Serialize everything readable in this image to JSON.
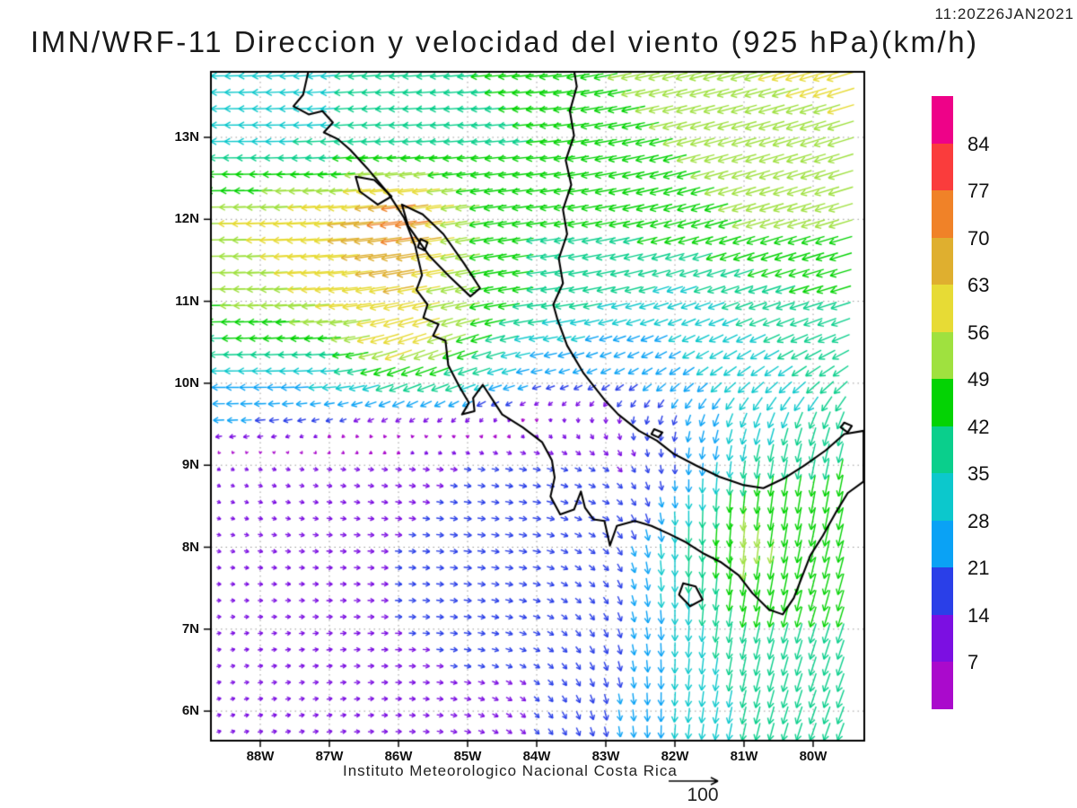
{
  "header": {
    "title": "IMN/WRF-11 Direccion y velocidad del viento (925 hPa)(km/h)",
    "timestamp": "11:20Z26JAN2021"
  },
  "footer": {
    "institute": "Instituto Meteorologico Nacional Costa Rica",
    "reference_label": "100"
  },
  "axes": {
    "lat_labels": [
      "13N",
      "12N",
      "11N",
      "10N",
      "9N",
      "8N",
      "7N",
      "6N"
    ],
    "lon_labels": [
      "88W",
      "87W",
      "86W",
      "85W",
      "84W",
      "83W",
      "82W",
      "81W",
      "80W"
    ]
  },
  "chart_data": {
    "type": "quiver",
    "title": "IMN/WRF-11 Direccion y velocidad del viento (925 hPa)(km/h)",
    "valid_time": "11:20Z26JAN2021",
    "units": "km/h",
    "level": "925 hPa",
    "lon_range": [
      -88.7,
      -79.3
    ],
    "lat_range": [
      5.6,
      13.8
    ],
    "grid_on": true,
    "legend_position": "right",
    "reference_speed": 100,
    "speed_levels": [
      7,
      14,
      21,
      28,
      35,
      42,
      49,
      56,
      63,
      70,
      77,
      84
    ],
    "speed_colors": [
      "#aa0acc",
      "#7c0fe2",
      "#2a3fe8",
      "#0aa2f5",
      "#0cc8cc",
      "#0acf8c",
      "#04d304",
      "#9fe13f",
      "#e7db35",
      "#dfaf2f",
      "#f08228",
      "#fa3c3c",
      "#ee0288"
    ],
    "grid": {
      "lons": [
        -89,
        -88,
        -87,
        -86,
        -85,
        -84,
        -83,
        -82,
        -81,
        -80,
        -79
      ],
      "lats": [
        5.5,
        6,
        7,
        8,
        8.5,
        9,
        9.5,
        10,
        10.5,
        11,
        12,
        13,
        14
      ],
      "u": [
        [
          8,
          10,
          11,
          12,
          13,
          10,
          5,
          -2,
          -8,
          -12,
          -14
        ],
        [
          8,
          10,
          11,
          12,
          13,
          10,
          5,
          -2,
          -8,
          -12,
          -14
        ],
        [
          8,
          10,
          12,
          14,
          15,
          14,
          8,
          0,
          -8,
          -12,
          -14
        ],
        [
          8,
          10,
          12,
          14,
          16,
          16,
          12,
          0,
          -5,
          -10,
          -12
        ],
        [
          7,
          9,
          11,
          13,
          15,
          16,
          14,
          2,
          -5,
          -8,
          -10
        ],
        [
          5,
          8,
          10,
          12,
          14,
          15,
          12,
          0,
          -5,
          -8,
          -10
        ],
        [
          -22,
          -20,
          -12,
          -8,
          -5,
          3,
          2,
          -5,
          -10,
          -12,
          -12
        ],
        [
          -28,
          -28,
          -30,
          -40,
          -35,
          -20,
          -18,
          -20,
          -25,
          -28,
          -30
        ],
        [
          -40,
          -42,
          -45,
          -60,
          -45,
          -30,
          -25,
          -25,
          -30,
          -35,
          -35
        ],
        [
          -48,
          -52,
          -58,
          -60,
          -50,
          -40,
          -35,
          -30,
          -35,
          -40,
          -40
        ],
        [
          -55,
          -58,
          -62,
          -75,
          -50,
          -42,
          -42,
          -45,
          -48,
          -48,
          -48
        ],
        [
          -30,
          -32,
          -35,
          -38,
          -40,
          -42,
          -45,
          -48,
          -50,
          -52,
          -52
        ],
        [
          -30,
          -31,
          -34,
          -38,
          -42,
          -45,
          -48,
          -52,
          -55,
          -56,
          -58
        ]
      ],
      "v": [
        [
          3,
          2,
          2,
          0,
          -3,
          -10,
          -20,
          -28,
          -35,
          -35,
          -35
        ],
        [
          3,
          2,
          2,
          0,
          -3,
          -10,
          -20,
          -28,
          -35,
          -35,
          -35
        ],
        [
          2,
          1,
          1,
          0,
          -2,
          -5,
          -15,
          -30,
          -40,
          -40,
          -40
        ],
        [
          -2,
          -2,
          -1,
          -1,
          -2,
          -3,
          -10,
          -35,
          -52,
          -45,
          -45
        ],
        [
          -3,
          -3,
          -2,
          -2,
          -2,
          -3,
          -6,
          -25,
          -48,
          -45,
          -45
        ],
        [
          -4,
          -3,
          -2,
          -2,
          -2,
          -3,
          -8,
          -18,
          -35,
          -40,
          -42
        ],
        [
          0,
          -2,
          -5,
          -6,
          -8,
          -6,
          -12,
          -20,
          -30,
          -35,
          -38
        ],
        [
          0,
          0,
          -2,
          -15,
          -12,
          -5,
          -10,
          -15,
          -20,
          -22,
          -25
        ],
        [
          0,
          -2,
          -3,
          -20,
          -15,
          -5,
          -8,
          -12,
          -15,
          -15,
          -15
        ],
        [
          0,
          -2,
          -5,
          -12,
          -10,
          -5,
          -8,
          -10,
          -12,
          -12,
          -12
        ],
        [
          0,
          -2,
          -5,
          -10,
          -8,
          -6,
          -8,
          -12,
          -14,
          -14,
          -15
        ],
        [
          0,
          0,
          -2,
          -2,
          -3,
          -4,
          -8,
          -12,
          -14,
          -16,
          -16
        ],
        [
          0,
          -2,
          -3,
          -3,
          -4,
          -5,
          -10,
          -12,
          -14,
          -16,
          -18
        ]
      ]
    }
  },
  "map": {
    "coastline": [
      [
        -87.3,
        13.82
      ],
      [
        -87.38,
        13.52
      ],
      [
        -87.52,
        13.38
      ],
      [
        -87.3,
        13.28
      ],
      [
        -87.1,
        13.32
      ],
      [
        -86.95,
        13.18
      ],
      [
        -87.08,
        13.06
      ],
      [
        -86.88,
        12.98
      ],
      [
        -86.7,
        12.85
      ],
      [
        -86.45,
        12.62
      ],
      [
        -86.15,
        12.32
      ],
      [
        -85.92,
        12.02
      ],
      [
        -85.76,
        11.68
      ],
      [
        -85.66,
        11.32
      ],
      [
        -85.74,
        11.14
      ],
      [
        -85.58,
        10.96
      ],
      [
        -85.64,
        10.8
      ],
      [
        -85.42,
        10.72
      ],
      [
        -85.5,
        10.58
      ],
      [
        -85.32,
        10.52
      ],
      [
        -85.28,
        10.22
      ],
      [
        -85.12,
        9.96
      ],
      [
        -84.98,
        9.76
      ],
      [
        -85.08,
        9.62
      ],
      [
        -84.9,
        9.66
      ],
      [
        -84.92,
        9.82
      ],
      [
        -84.78,
        9.98
      ],
      [
        -84.64,
        9.8
      ],
      [
        -84.5,
        9.62
      ],
      [
        -84.2,
        9.46
      ],
      [
        -83.92,
        9.28
      ],
      [
        -83.78,
        9.06
      ],
      [
        -83.74,
        8.85
      ],
      [
        -83.8,
        8.62
      ],
      [
        -83.66,
        8.4
      ],
      [
        -83.46,
        8.46
      ],
      [
        -83.36,
        8.68
      ],
      [
        -83.3,
        8.48
      ],
      [
        -83.18,
        8.34
      ],
      [
        -83.02,
        8.32
      ],
      [
        -82.94,
        8.02
      ],
      [
        -82.84,
        8.26
      ],
      [
        -82.58,
        8.32
      ],
      [
        -82.34,
        8.26
      ],
      [
        -82.08,
        8.16
      ],
      [
        -81.84,
        8.06
      ],
      [
        -81.58,
        7.92
      ],
      [
        -81.34,
        7.82
      ],
      [
        -81.08,
        7.66
      ],
      [
        -80.88,
        7.44
      ],
      [
        -80.64,
        7.24
      ],
      [
        -80.44,
        7.18
      ],
      [
        -80.28,
        7.38
      ],
      [
        -80.16,
        7.64
      ],
      [
        -80.04,
        7.9
      ],
      [
        -79.86,
        8.14
      ],
      [
        -79.66,
        8.44
      ],
      [
        -79.5,
        8.66
      ],
      [
        -79.27,
        8.8
      ],
      [
        -79.27,
        9.42
      ],
      [
        -79.55,
        9.38
      ],
      [
        -79.82,
        9.18
      ],
      [
        -80.12,
        9.0
      ],
      [
        -80.42,
        8.84
      ],
      [
        -80.72,
        8.72
      ],
      [
        -81.02,
        8.76
      ],
      [
        -81.36,
        8.86
      ],
      [
        -81.7,
        9.0
      ],
      [
        -82.02,
        9.14
      ],
      [
        -82.26,
        9.3
      ],
      [
        -82.52,
        9.42
      ],
      [
        -82.82,
        9.62
      ],
      [
        -83.02,
        9.8
      ],
      [
        -83.32,
        10.12
      ],
      [
        -83.56,
        10.46
      ],
      [
        -83.7,
        10.78
      ],
      [
        -83.76,
        10.96
      ],
      [
        -83.62,
        11.22
      ],
      [
        -83.68,
        11.52
      ],
      [
        -83.56,
        11.82
      ],
      [
        -83.62,
        12.12
      ],
      [
        -83.5,
        12.42
      ],
      [
        -83.58,
        12.72
      ],
      [
        -83.46,
        13.02
      ],
      [
        -83.52,
        13.32
      ],
      [
        -83.42,
        13.62
      ],
      [
        -83.46,
        13.82
      ]
    ],
    "lakes": [
      [
        [
          -85.95,
          12.18
        ],
        [
          -85.65,
          12.06
        ],
        [
          -85.35,
          11.82
        ],
        [
          -85.05,
          11.46
        ],
        [
          -84.82,
          11.16
        ],
        [
          -84.96,
          11.06
        ],
        [
          -85.26,
          11.3
        ],
        [
          -85.56,
          11.56
        ],
        [
          -85.86,
          11.92
        ],
        [
          -85.95,
          12.18
        ]
      ],
      [
        [
          -86.62,
          12.52
        ],
        [
          -86.35,
          12.48
        ],
        [
          -86.1,
          12.28
        ],
        [
          -86.3,
          12.18
        ],
        [
          -86.56,
          12.34
        ],
        [
          -86.62,
          12.52
        ]
      ]
    ],
    "islands": [
      [
        [
          -81.88,
          7.56
        ],
        [
          -81.7,
          7.52
        ],
        [
          -81.6,
          7.36
        ],
        [
          -81.78,
          7.28
        ],
        [
          -81.94,
          7.42
        ],
        [
          -81.88,
          7.56
        ]
      ],
      [
        [
          -85.68,
          11.76
        ],
        [
          -85.58,
          11.72
        ],
        [
          -85.62,
          11.62
        ],
        [
          -85.72,
          11.66
        ],
        [
          -85.68,
          11.76
        ]
      ],
      [
        [
          -82.3,
          9.44
        ],
        [
          -82.18,
          9.4
        ],
        [
          -82.24,
          9.34
        ],
        [
          -82.34,
          9.38
        ],
        [
          -82.3,
          9.44
        ]
      ],
      [
        [
          -79.55,
          9.52
        ],
        [
          -79.44,
          9.48
        ],
        [
          -79.5,
          9.4
        ],
        [
          -79.6,
          9.46
        ],
        [
          -79.55,
          9.52
        ]
      ]
    ]
  }
}
